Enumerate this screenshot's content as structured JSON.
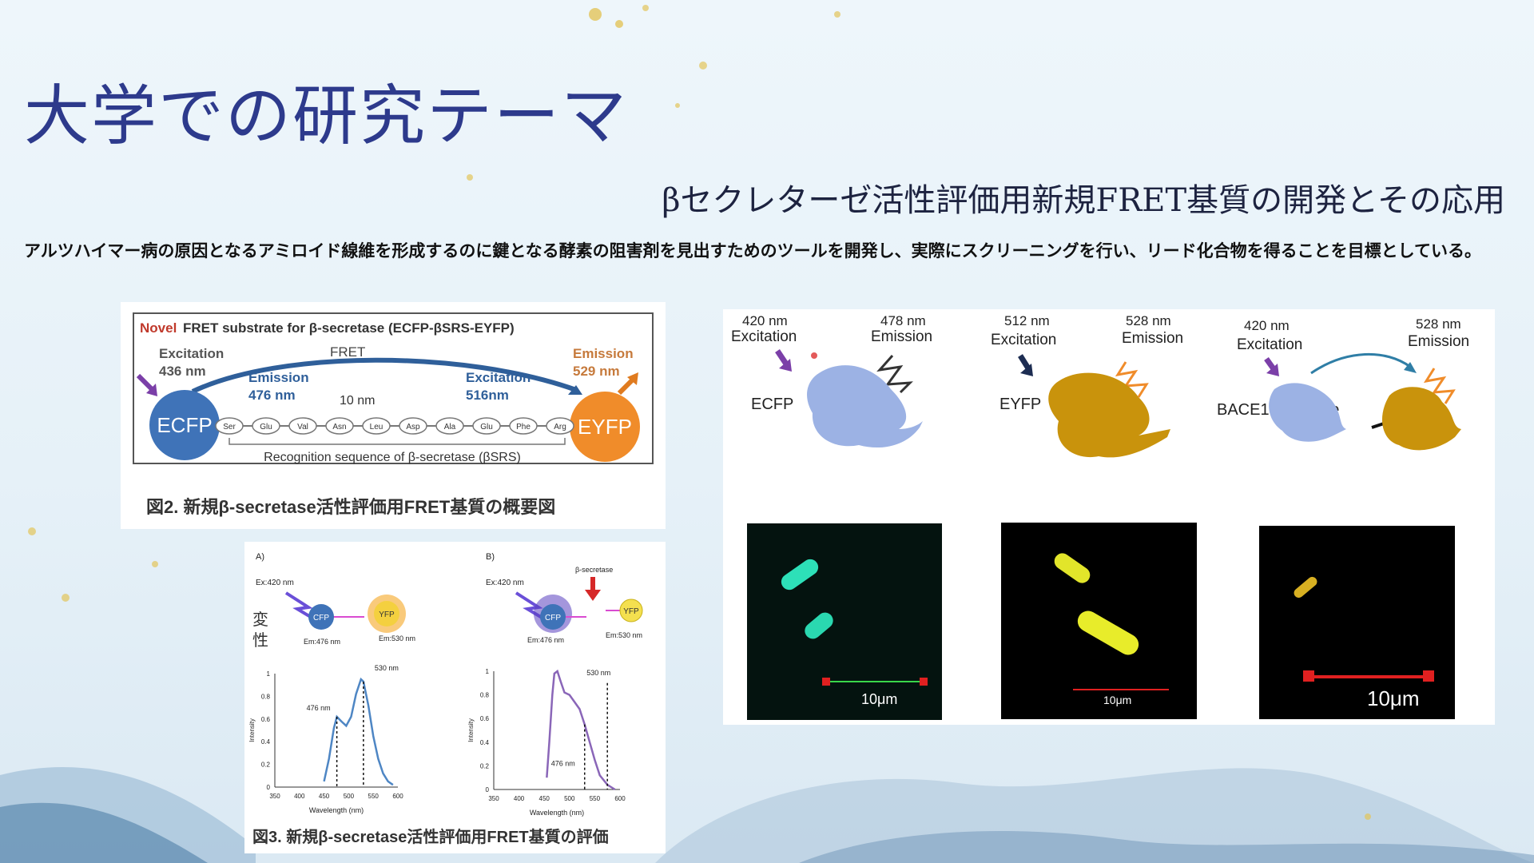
{
  "slide": {
    "title": "大学での研究テーマ",
    "subtitle": "βセクレターゼ活性評価用新規FRET基質の開発とその応用",
    "description": "アルツハイマー病の原因となるアミロイド線維を形成するのに鍵となる酵素の阻害剤を見出すためのツールを開発し、実際にスクリーニングを行い、リード化合物を得ることを目標としている。"
  },
  "figure2": {
    "heading_prefix": "Novel",
    "heading_rest": "FRET substrate for β-secretase (ECFP-βSRS-EYFP)",
    "excitation_label": "Excitation",
    "excitation_value": "436 nm",
    "fret_label": "FRET",
    "emission_label": "Emission",
    "emission_value": "529 nm",
    "inner_emission_label": "Emission",
    "inner_emission_value": "476 nm",
    "distance": "10 nm",
    "inner_excitation_label": "Excitation",
    "inner_excitation_value": "516nm",
    "donor": "ECFP",
    "acceptor": "EYFP",
    "residues": [
      "Ser",
      "Glu",
      "Val",
      "Asn",
      "Leu",
      "Asp",
      "Ala",
      "Glu",
      "Phe",
      "Arg"
    ],
    "recognition_caption": "Recognition sequence of β-secretase (βSRS)",
    "caption": "図2.  新規β-secretase活性評価用FRET基質の概要図"
  },
  "figure3": {
    "label_a": "A)",
    "label_b": "B)",
    "ex_a": "Ex:420 nm",
    "ex_b": "Ex:420 nm",
    "enzyme": "β-secretase",
    "denat_1": "変",
    "denat_2": "性",
    "cfp": "CFP",
    "yfp": "YFP",
    "em_cfp_a": "Em:476 nm",
    "em_yfp_a": "Em:530 nm",
    "em_cfp_b": "Em:476 nm",
    "em_yfp_b": "Em:530 nm",
    "ylabel": "Intensity",
    "xlabel": "Wavelength (nm)",
    "peak_476": "476 nm",
    "peak_530": "530 nm",
    "caption": "図3.  新規β-secretase活性評価用FRET基質の評価"
  },
  "chart_data": [
    {
      "type": "line",
      "title": "A)",
      "xlabel": "Wavelength (nm)",
      "ylabel": "Intensity",
      "xlim": [
        350,
        600
      ],
      "ylim": [
        0,
        1
      ],
      "xticks": [
        "350",
        "400",
        "450",
        "500",
        "550",
        "600"
      ],
      "yticks": [
        "0",
        "0.2",
        "0.4",
        "0.6",
        "0.8",
        "1"
      ],
      "x": [
        450,
        460,
        470,
        476,
        485,
        495,
        505,
        515,
        525,
        530,
        540,
        550,
        560,
        570,
        580,
        590
      ],
      "series": [
        {
          "values": [
            0.05,
            0.25,
            0.52,
            0.62,
            0.58,
            0.54,
            0.62,
            0.82,
            0.95,
            0.93,
            0.72,
            0.45,
            0.25,
            0.12,
            0.05,
            0.02
          ]
        }
      ],
      "annotations": [
        "476 nm",
        "530 nm"
      ]
    },
    {
      "type": "line",
      "title": "B)",
      "xlabel": "Wavelength (nm)",
      "ylabel": "Intensity",
      "xlim": [
        350,
        600
      ],
      "ylim": [
        0,
        1
      ],
      "xticks": [
        "350",
        "400",
        "450",
        "500",
        "550",
        "600"
      ],
      "yticks": [
        "0",
        "0.2",
        "0.4",
        "0.6",
        "0.8",
        "1"
      ],
      "x": [
        455,
        460,
        466,
        470,
        476,
        482,
        490,
        500,
        510,
        520,
        530,
        540,
        550,
        560,
        575,
        590
      ],
      "series": [
        {
          "values": [
            0.1,
            0.4,
            0.8,
            0.98,
            1.0,
            0.92,
            0.82,
            0.8,
            0.74,
            0.68,
            0.55,
            0.4,
            0.25,
            0.12,
            0.04,
            0.0
          ]
        }
      ],
      "annotations": [
        "476 nm",
        "530 nm"
      ]
    }
  ],
  "figure_right": {
    "ecfp_exc_value": "420 nm",
    "ecfp_exc_label": "Excitation",
    "ecfp_em_value": "478 nm",
    "ecfp_em_label": "Emission",
    "ecfp_name": "ECFP",
    "eyfp_exc_value": "512 nm",
    "eyfp_exc_label": "Excitation",
    "eyfp_em_value": "528 nm",
    "eyfp_em_label": "Emission",
    "eyfp_name": "EYFP",
    "bace_exc_value": "420 nm",
    "bace_exc_label": "Excitation",
    "bace_em_value": "528 nm",
    "bace_em_label": "Emission",
    "bace_name": "BACE1 substrate",
    "scale_1": "10μm",
    "scale_2": "10μm",
    "scale_3": "10μm"
  },
  "colors": {
    "title": "#2d3a8c",
    "ecfp": "#3f73b8",
    "eyfp": "#f08c2a",
    "protein_blue": "#9cb2e4",
    "protein_gold": "#c9930c",
    "arrow_purple": "#7b3fa8",
    "spectrum_a": "#4e86c4",
    "spectrum_b": "#8a66b8"
  }
}
